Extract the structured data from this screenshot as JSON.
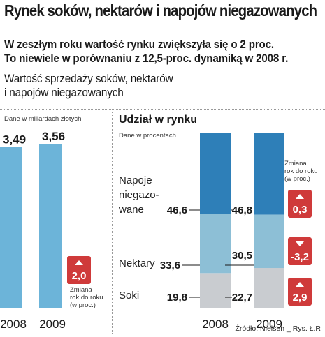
{
  "header": {
    "title": "Rynek soków, nektarów i napojów niegazowanych",
    "lead_line1": "W zeszłym roku wartość rynku zwiększyła się o 2 proc.",
    "lead_line2": "To niewiele w porównaniu z 12,5-proc. dynamiką w 2008 r.",
    "sub_line1": "Wartość sprzedaży soków, nektarów",
    "sub_line2": "i napojów niegazowanych"
  },
  "left_panel": {
    "unit_label": "Dane w miliardach złotych",
    "change_label_line1": "Zmiana",
    "change_label_line2": "rok do roku",
    "change_label_line3": "(w proc.)"
  },
  "right_panel": {
    "title": "Udział w rynku",
    "unit_label": "Dane w procentach",
    "change_label_line1": "Zmiana",
    "change_label_line2": "rok do roku",
    "change_label_line3": "(w proc.)",
    "cat_napoje_line1": "Napoje",
    "cat_napoje_line2": "niegazo-",
    "cat_napoje_line3": "wane",
    "cat_nektary": "Nektary",
    "cat_soki": "Soki"
  },
  "source": "Źródło: Nielsen _ Rys. Ł.R",
  "colors": {
    "blue": "#6cb4d9",
    "dark_blue": "#2e7fb8",
    "light_grey": "#c9ccd0",
    "red": "#cf3a3a"
  },
  "chart_data": [
    {
      "type": "bar",
      "title": "Wartość sprzedaży soków, nektarów i napojów niegazowanych",
      "ylabel": "Dane w miliardach złotych",
      "categories": [
        "2008",
        "2009"
      ],
      "values": [
        3.49,
        3.56
      ],
      "value_labels": [
        "3,49",
        "3,56"
      ],
      "change_yoy": {
        "2009": 2.0
      },
      "change_yoy_label": "2,0",
      "change_direction": "up"
    },
    {
      "type": "bar",
      "stacked": true,
      "title": "Udział w rynku",
      "ylabel": "Dane w procentach",
      "categories": [
        "2008",
        "2009"
      ],
      "series": [
        {
          "name": "Soki",
          "values": [
            19.8,
            22.7
          ],
          "labels": [
            "19,8",
            "22,7"
          ]
        },
        {
          "name": "Nektary",
          "values": [
            33.6,
            30.5
          ],
          "labels": [
            "33,6",
            "30,5"
          ]
        },
        {
          "name": "Napoje niegazowane",
          "values": [
            46.6,
            46.8
          ],
          "labels": [
            "46,6",
            "46,8"
          ]
        }
      ],
      "change_yoy": [
        {
          "series": "Napoje niegazowane",
          "value": 0.3,
          "label": "0,3",
          "direction": "up"
        },
        {
          "series": "Nektary",
          "value": -3.2,
          "label": "-3,2",
          "direction": "down"
        },
        {
          "series": "Soki",
          "value": 2.9,
          "label": "2,9",
          "direction": "up"
        }
      ]
    }
  ]
}
